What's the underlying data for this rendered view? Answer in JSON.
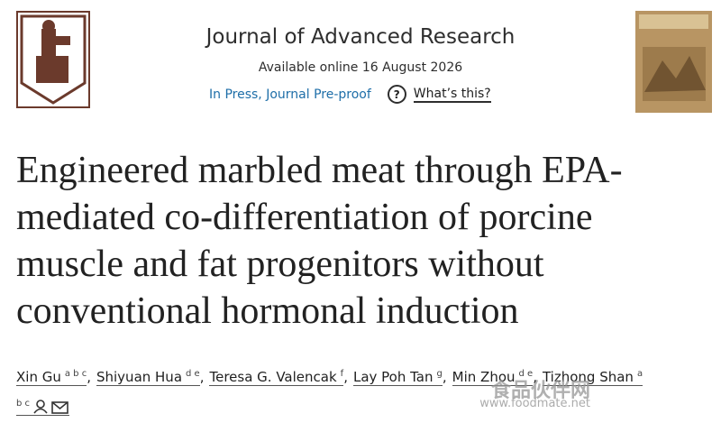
{
  "header": {
    "journal": "Journal of Advanced Research",
    "available": "Available online 16 August 2026",
    "status": "In Press, Journal Pre-proof",
    "help": "What’s this?",
    "help_icon": "?"
  },
  "title": "Engineered marbled meat through EPA-mediated co-differentiation of porcine muscle and fat progenitors without conventional hormonal induction",
  "authors": [
    {
      "name": "Xin Gu",
      "affiliations": "a b c",
      "separator": ","
    },
    {
      "name": "Shiyuan Hua",
      "affiliations": "d e",
      "separator": ","
    },
    {
      "name": "Teresa G. Valencak",
      "affiliations": "f",
      "separator": ","
    },
    {
      "name": "Lay Poh Tan",
      "affiliations": "g",
      "separator": ","
    },
    {
      "name": "Min Zhou",
      "affiliations": "d e",
      "separator": ","
    },
    {
      "name": "Tizhong Shan",
      "affiliations": "a b c"
    }
  ],
  "watermark": {
    "text": "食品伙伴网",
    "url": "www.foodmate.net"
  }
}
